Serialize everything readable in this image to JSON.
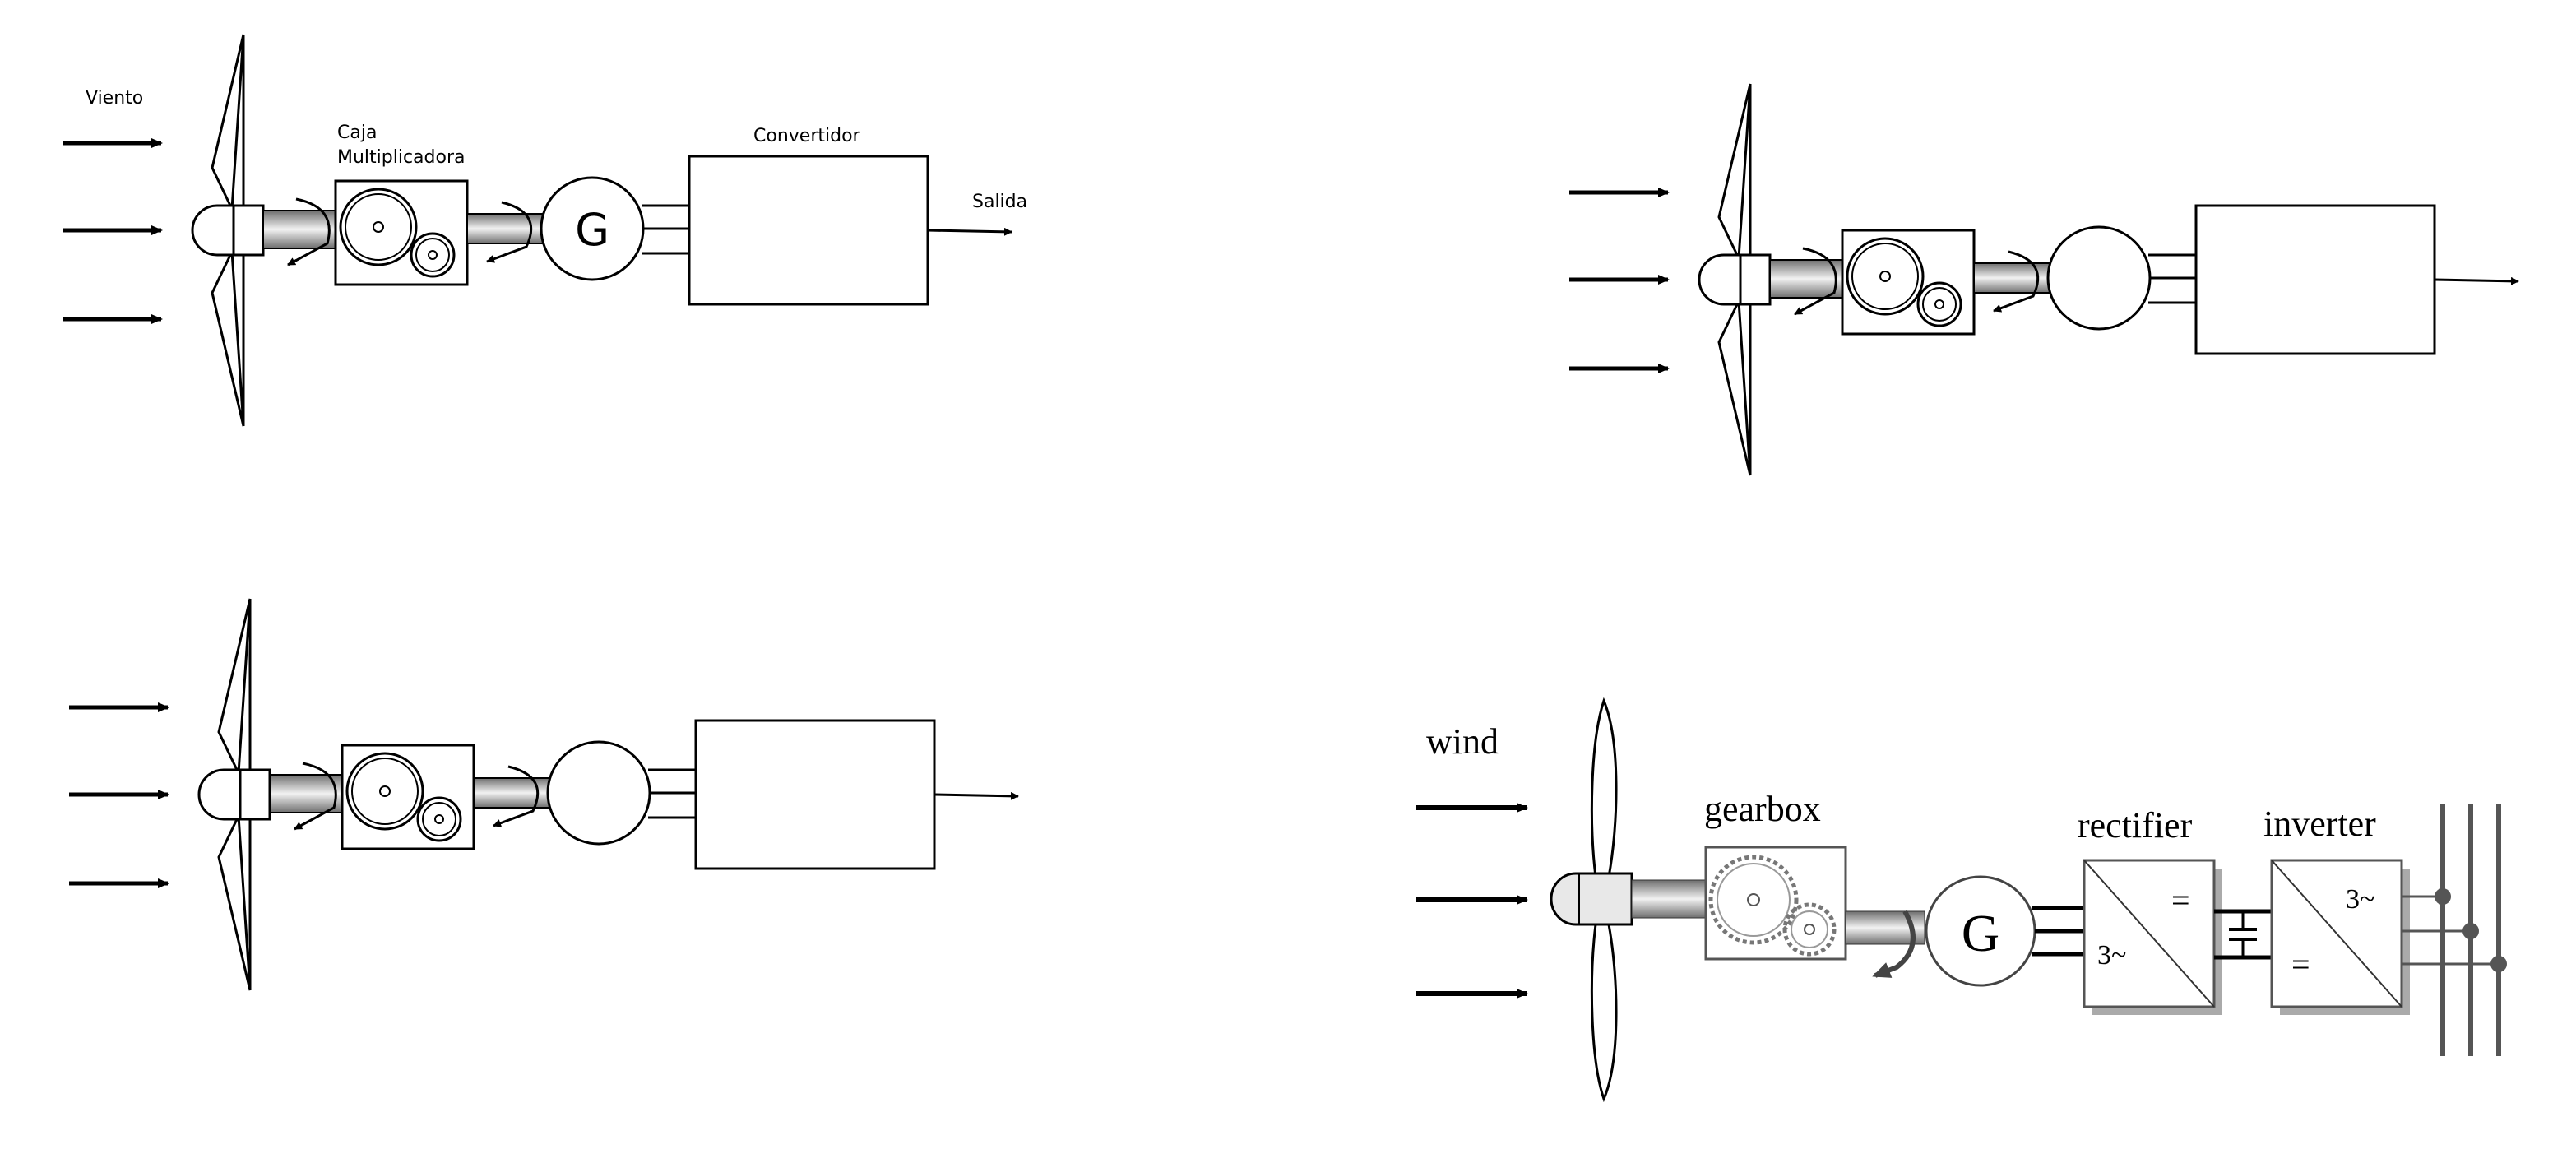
{
  "diagrams": [
    {
      "id": "labeled-spanish",
      "labels": {
        "wind": "Viento",
        "gearbox_line1": "Caja",
        "gearbox_line2": "Multiplicadora",
        "converter": "Convertidor",
        "output": "Salida",
        "generator_symbol": "G"
      }
    },
    {
      "id": "unlabeled-top-right"
    },
    {
      "id": "unlabeled-bottom-left"
    },
    {
      "id": "labeled-english",
      "labels": {
        "wind": "wind",
        "gearbox": "gearbox",
        "rectifier": "rectifier",
        "inverter": "inverter",
        "generator_symbol": "G",
        "rectifier_top": "=",
        "rectifier_bottom": "3~",
        "inverter_top": "3~",
        "inverter_bottom": "="
      }
    }
  ],
  "colors": {
    "line": "#000000",
    "shaft_dark": "#7a7a7a",
    "shaft_light": "#e6e6e6",
    "grid_line": "#555555"
  }
}
